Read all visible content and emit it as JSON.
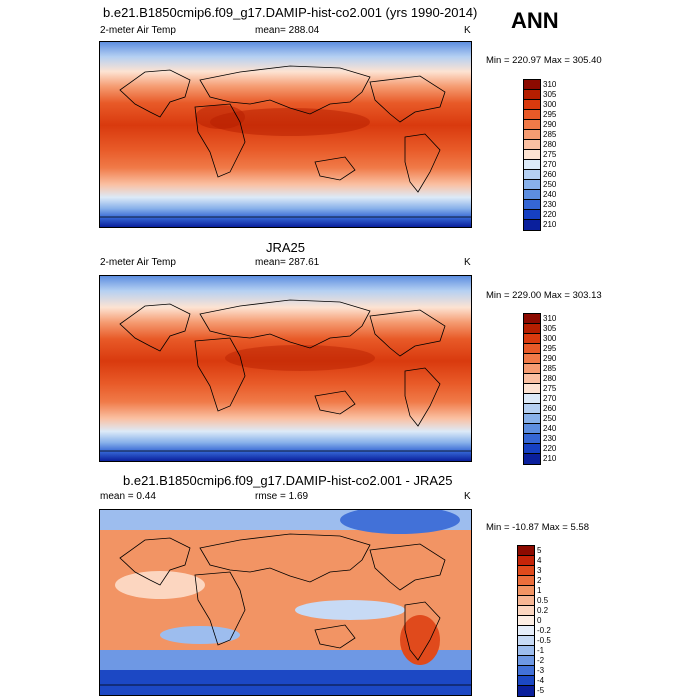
{
  "season": "ANN",
  "panels": [
    {
      "title": "b.e21.B1850cmip6.f09_g17.DAMIP-hist-co2.001 (yrs 1990-2014)",
      "left": "2-meter Air Temp",
      "center": "mean= 288.04",
      "units": "K",
      "minmax": "Min = 220.97 Max = 305.40",
      "levels": [
        "310",
        "305",
        "300",
        "295",
        "290",
        "285",
        "280",
        "275",
        "270",
        "260",
        "250",
        "240",
        "230",
        "220",
        "210"
      ],
      "colors": [
        "#8c0a00",
        "#b51e00",
        "#d93a0e",
        "#e85a28",
        "#f07a48",
        "#f59c72",
        "#fac0a2",
        "#fde3d2",
        "#dceaf8",
        "#b5d0f2",
        "#88b1ea",
        "#5d8ee0",
        "#3566d4",
        "#1640c2",
        "#0a1f9c"
      ]
    },
    {
      "title": "JRA25",
      "left": "2-meter Air Temp",
      "center": "mean= 287.61",
      "units": "K",
      "minmax": "Min = 229.00 Max = 303.13",
      "levels": [
        "310",
        "305",
        "300",
        "295",
        "290",
        "285",
        "280",
        "275",
        "270",
        "260",
        "250",
        "240",
        "230",
        "220",
        "210"
      ],
      "colors": [
        "#8c0a00",
        "#b51e00",
        "#d93a0e",
        "#e85a28",
        "#f07a48",
        "#f59c72",
        "#fac0a2",
        "#fde3d2",
        "#dceaf8",
        "#b5d0f2",
        "#88b1ea",
        "#5d8ee0",
        "#3566d4",
        "#1640c2",
        "#0a1f9c"
      ]
    },
    {
      "title": "b.e21.B1850cmip6.f09_g17.DAMIP-hist-co2.001 - JRA25",
      "left": "mean =   0.44",
      "center": "rmse =   1.69",
      "units": "K",
      "minmax": "Min = -10.87 Max =   5.58",
      "levels": [
        "5",
        "4",
        "3",
        "2",
        "1",
        "0.5",
        "0.2",
        "0",
        "-0.2",
        "-0.5",
        "-1",
        "-2",
        "-3",
        "-4",
        "-5"
      ],
      "colors": [
        "#8c0a00",
        "#c52408",
        "#e04a1c",
        "#ec6e3c",
        "#f29464",
        "#f7b694",
        "#fcd6c0",
        "#fdeee4",
        "#e6eefa",
        "#c7daf5",
        "#9dbdee",
        "#6e98e4",
        "#4271d8",
        "#1c48c4",
        "#0a1f9c"
      ]
    }
  ]
}
